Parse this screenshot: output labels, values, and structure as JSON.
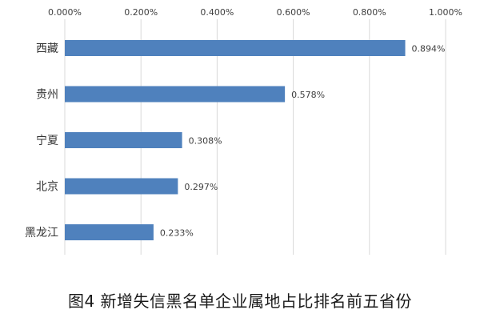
{
  "caption": "图4  新增失信黑名单企业属地占比排名前五省份",
  "chart_data": {
    "type": "bar",
    "orientation": "horizontal",
    "categories": [
      "西藏",
      "贵州",
      "宁夏",
      "北京",
      "黑龙江"
    ],
    "values": [
      0.894,
      0.578,
      0.308,
      0.297,
      0.233
    ],
    "value_labels": [
      "0.894%",
      "0.578%",
      "0.308%",
      "0.297%",
      "0.233%"
    ],
    "xlim": [
      0,
      1.0
    ],
    "x_ticks": [
      0,
      0.2,
      0.4,
      0.6,
      0.8,
      1.0
    ],
    "x_tick_labels": [
      "0.000%",
      "0.200%",
      "0.400%",
      "0.600%",
      "0.800%",
      "1.000%"
    ],
    "x_axis_position": "top",
    "grid": "vertical",
    "bar_color": "#4f81bd",
    "grid_color": "#d9d9d9",
    "legend": "none"
  }
}
